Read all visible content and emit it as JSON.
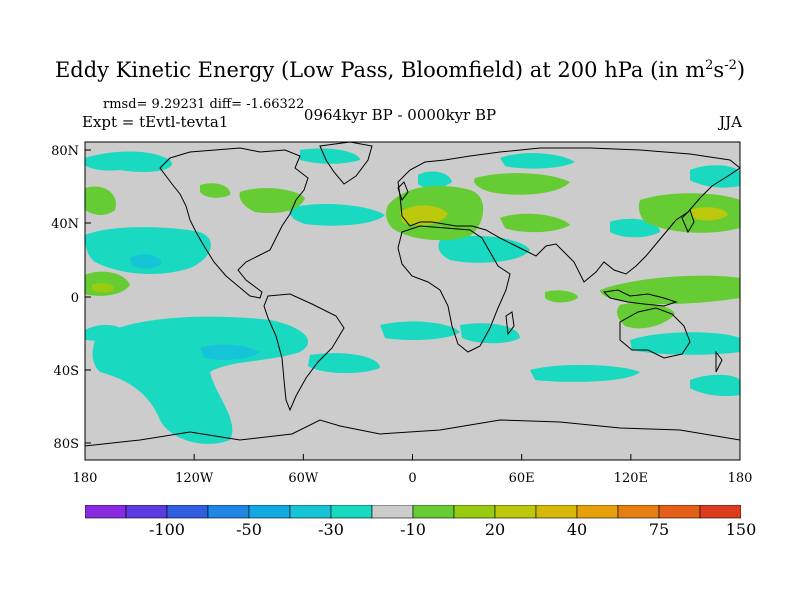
{
  "title": {
    "main": "Eddy Kinetic Energy (Low Pass, Bloomfield) at 200 hPa (in m",
    "sup1": "2",
    "mid": "s",
    "sup2": "-2",
    "end": ")"
  },
  "stats": "rmsd= 9.29231 diff= -1.66322",
  "expt": "Expt = tEvtl-tevta1",
  "period": "0964kyr BP - 0000kyr BP",
  "season": "JJA",
  "axes": {
    "x_ticks": [
      "180",
      "120W",
      "60W",
      "0",
      "60E",
      "120E",
      "180"
    ],
    "y_ticks": [
      "80N",
      "40N",
      "0",
      "40S",
      "80S"
    ]
  },
  "colorbar": {
    "colors": [
      "#8a2be2",
      "#5a3ce0",
      "#2f5fe0",
      "#1f86e6",
      "#12a9e3",
      "#16c4d8",
      "#19d9c0",
      "#cccccc",
      "#66cc33",
      "#99cc11",
      "#bbc80c",
      "#d6b80a",
      "#e6a00a",
      "#e68010",
      "#e45f18",
      "#dc3c1c"
    ],
    "labels": [
      "-100",
      "-50",
      "-30",
      "-10",
      "20",
      "40",
      "75",
      "150"
    ]
  },
  "map_colors": {
    "land_bg": "#cccccc",
    "coast": "#000000",
    "teal": "#19d9c0",
    "cyan": "#16c4d8",
    "blue": "#12a9e3",
    "green": "#66cc33",
    "yellowgreen": "#99cc11",
    "olive": "#bbc80c"
  }
}
